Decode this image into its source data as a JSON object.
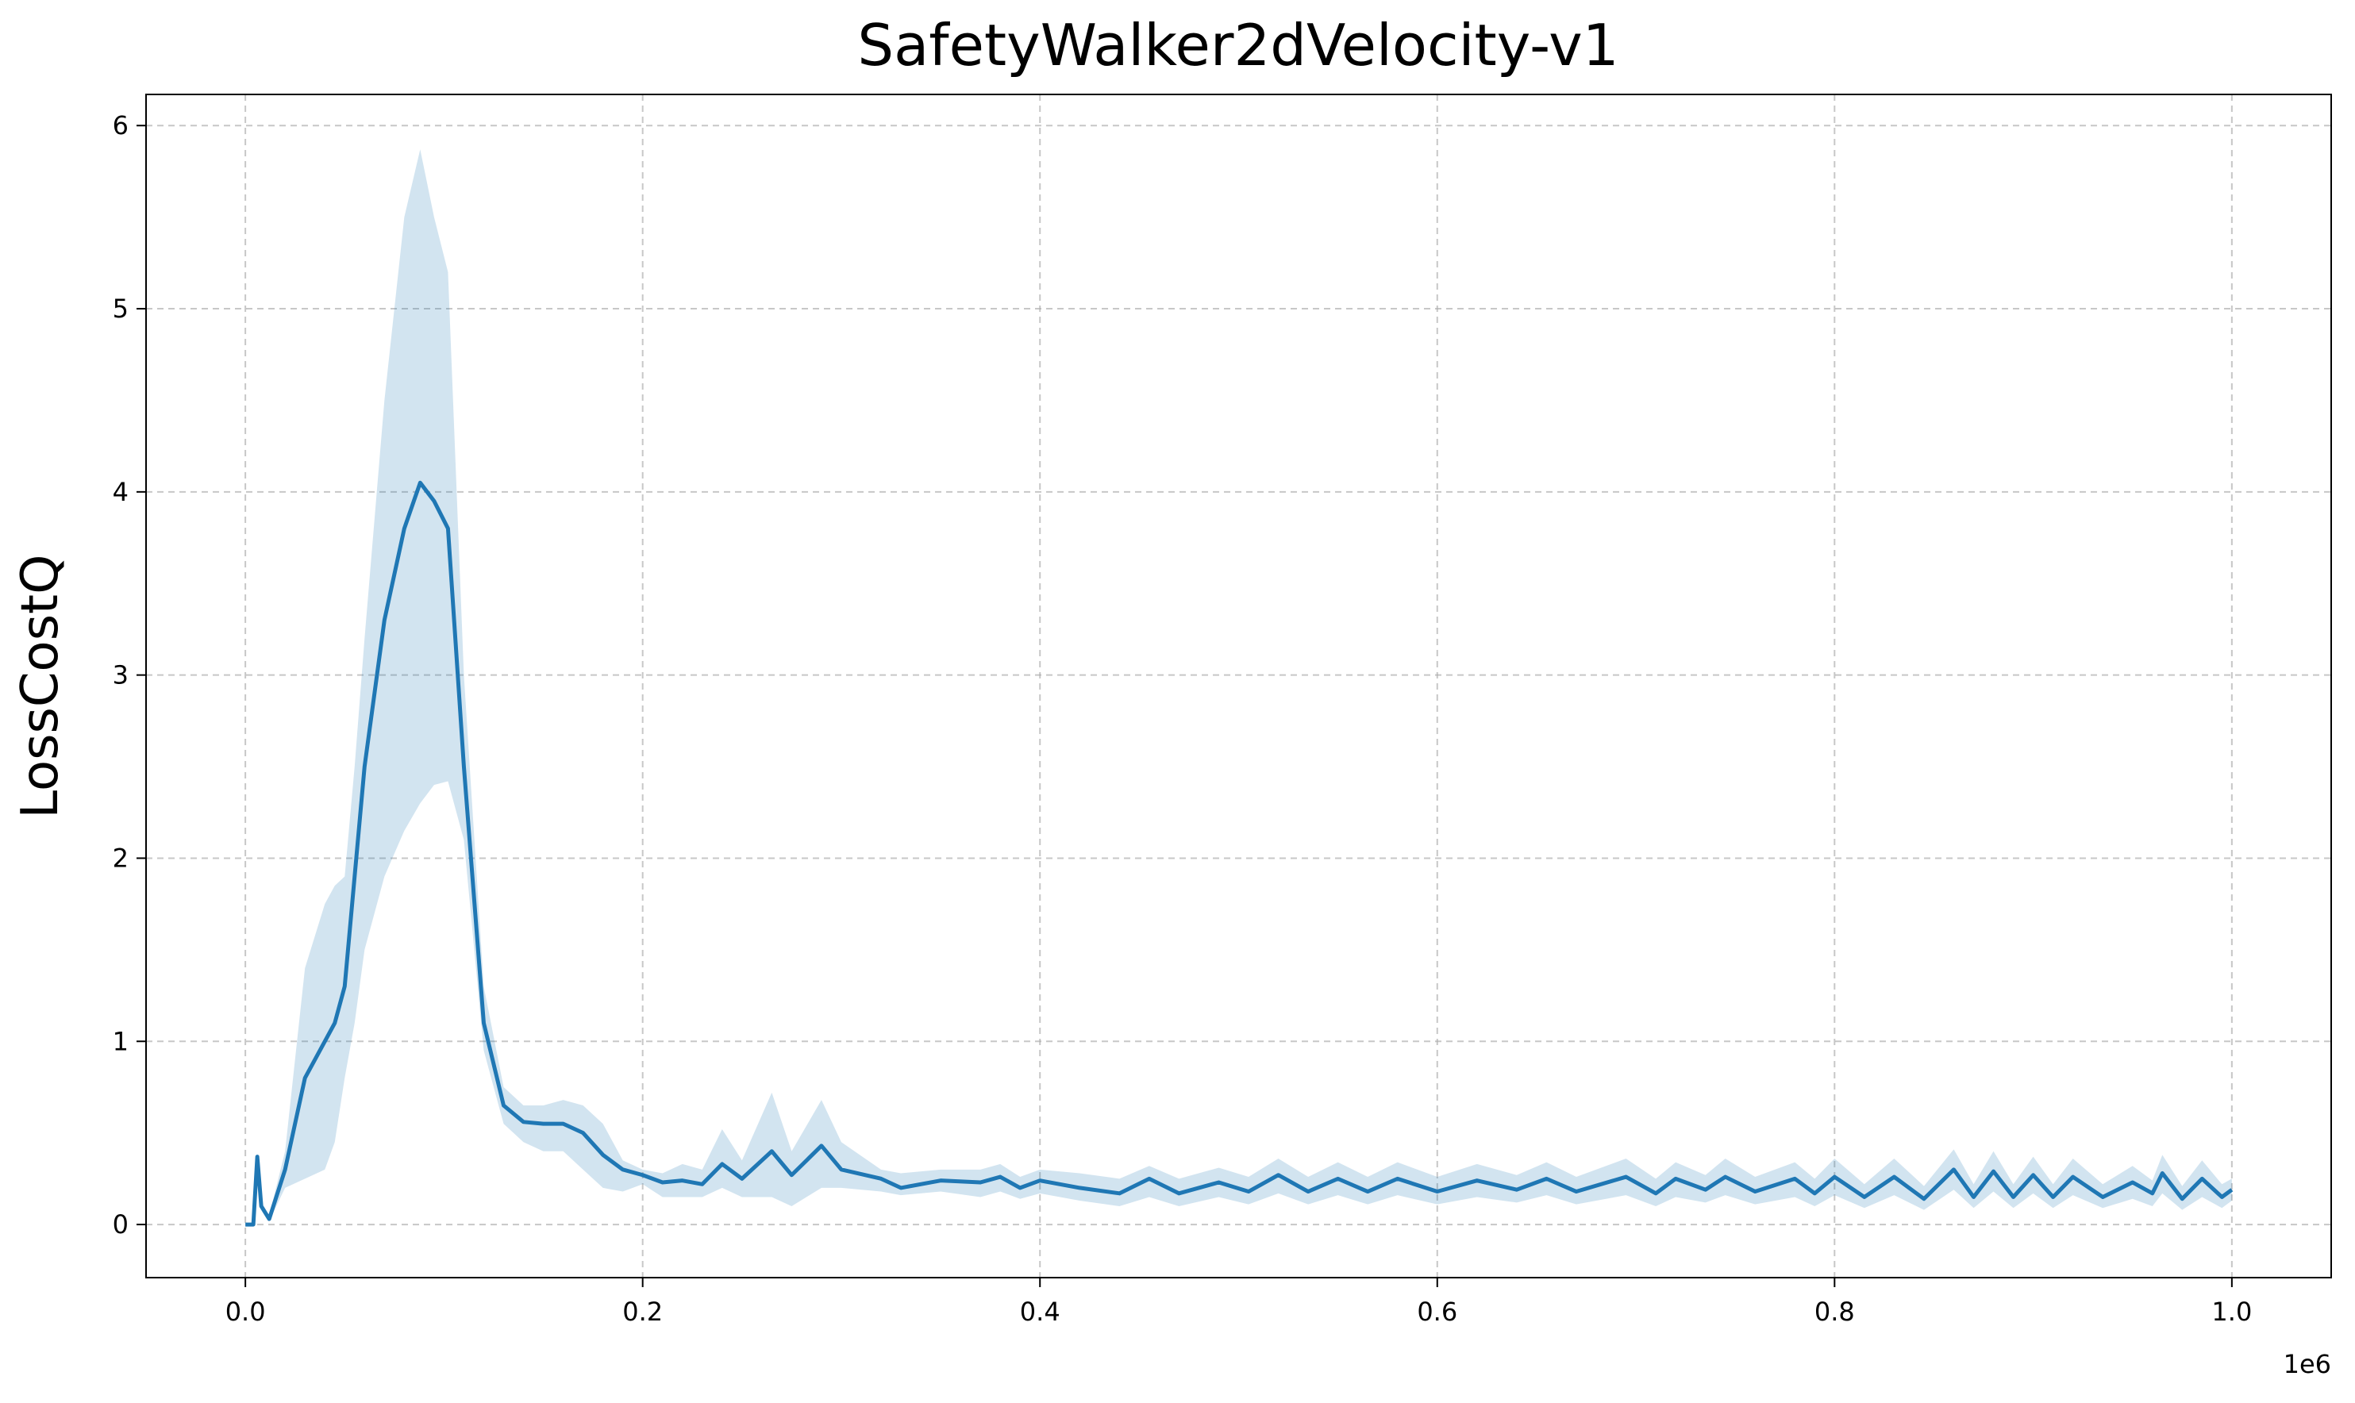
{
  "chart_data": {
    "type": "line",
    "title": "SafetyWalker2dVelocity-v1",
    "y_label": "LossCostQ",
    "x_offset_label": "1e6",
    "color": "#1f77b4",
    "band_color": "#1f77b4",
    "band_opacity": 0.2,
    "grid": true,
    "xlim": [
      -50000,
      1050000
    ],
    "ylim": [
      -0.29,
      6.17
    ],
    "xticks": [
      {
        "value": 0,
        "label": "0.0"
      },
      {
        "value": 200000,
        "label": "0.2"
      },
      {
        "value": 400000,
        "label": "0.4"
      },
      {
        "value": 600000,
        "label": "0.6"
      },
      {
        "value": 800000,
        "label": "0.8"
      },
      {
        "value": 1000000,
        "label": "1.0"
      }
    ],
    "yticks": [
      0,
      1,
      2,
      3,
      4,
      5,
      6
    ],
    "x": [
      0,
      4000,
      6000,
      8000,
      12000,
      20000,
      30000,
      40000,
      45000,
      50000,
      55000,
      60000,
      70000,
      80000,
      88000,
      95000,
      102000,
      110000,
      120000,
      130000,
      140000,
      150000,
      160000,
      170000,
      180000,
      190000,
      200000,
      210000,
      220000,
      230000,
      240000,
      250000,
      265000,
      275000,
      290000,
      300000,
      320000,
      330000,
      350000,
      370000,
      380000,
      390000,
      400000,
      420000,
      440000,
      455000,
      470000,
      490000,
      505000,
      520000,
      535000,
      550000,
      565000,
      580000,
      600000,
      620000,
      640000,
      655000,
      670000,
      695000,
      710000,
      720000,
      735000,
      745000,
      760000,
      780000,
      790000,
      800000,
      815000,
      830000,
      845000,
      860000,
      870000,
      880000,
      890000,
      900000,
      910000,
      920000,
      935000,
      950000,
      960000,
      965000,
      975000,
      985000,
      995000,
      1000000
    ],
    "values": [
      0,
      0,
      0.37,
      0.1,
      0.03,
      0.3,
      0.8,
      1.0,
      1.1,
      1.3,
      1.9,
      2.5,
      3.3,
      3.8,
      4.05,
      3.95,
      3.8,
      2.5,
      1.1,
      0.65,
      0.56,
      0.55,
      0.55,
      0.5,
      0.38,
      0.3,
      0.27,
      0.23,
      0.24,
      0.22,
      0.33,
      0.25,
      0.4,
      0.27,
      0.43,
      0.3,
      0.25,
      0.2,
      0.24,
      0.23,
      0.26,
      0.2,
      0.24,
      0.2,
      0.17,
      0.25,
      0.17,
      0.23,
      0.18,
      0.27,
      0.18,
      0.25,
      0.18,
      0.25,
      0.18,
      0.24,
      0.19,
      0.25,
      0.18,
      0.26,
      0.17,
      0.25,
      0.19,
      0.26,
      0.18,
      0.25,
      0.17,
      0.26,
      0.15,
      0.26,
      0.14,
      0.3,
      0.15,
      0.29,
      0.15,
      0.27,
      0.15,
      0.26,
      0.15,
      0.23,
      0.17,
      0.28,
      0.14,
      0.25,
      0.15,
      0.19
    ],
    "lower": [
      0,
      0,
      0.35,
      0.08,
      0.02,
      0.2,
      0.25,
      0.3,
      0.45,
      0.8,
      1.1,
      1.5,
      1.9,
      2.15,
      2.3,
      2.4,
      2.42,
      2.1,
      0.95,
      0.55,
      0.45,
      0.4,
      0.4,
      0.3,
      0.2,
      0.18,
      0.22,
      0.15,
      0.15,
      0.15,
      0.2,
      0.15,
      0.15,
      0.1,
      0.2,
      0.2,
      0.18,
      0.16,
      0.18,
      0.15,
      0.18,
      0.14,
      0.17,
      0.13,
      0.1,
      0.15,
      0.1,
      0.15,
      0.11,
      0.17,
      0.11,
      0.16,
      0.11,
      0.16,
      0.11,
      0.15,
      0.12,
      0.16,
      0.11,
      0.16,
      0.1,
      0.15,
      0.12,
      0.16,
      0.11,
      0.15,
      0.1,
      0.16,
      0.09,
      0.16,
      0.08,
      0.19,
      0.09,
      0.18,
      0.09,
      0.17,
      0.09,
      0.16,
      0.09,
      0.14,
      0.1,
      0.17,
      0.08,
      0.15,
      0.09,
      0.13
    ],
    "upper": [
      0,
      0,
      0.39,
      0.12,
      0.05,
      0.4,
      1.4,
      1.75,
      1.85,
      1.9,
      2.5,
      3.2,
      4.5,
      5.5,
      5.87,
      5.5,
      5.2,
      3.0,
      1.3,
      0.75,
      0.65,
      0.65,
      0.68,
      0.65,
      0.55,
      0.35,
      0.3,
      0.28,
      0.33,
      0.3,
      0.52,
      0.35,
      0.72,
      0.4,
      0.68,
      0.45,
      0.3,
      0.28,
      0.3,
      0.3,
      0.33,
      0.26,
      0.3,
      0.28,
      0.25,
      0.32,
      0.25,
      0.31,
      0.26,
      0.36,
      0.26,
      0.34,
      0.26,
      0.34,
      0.26,
      0.33,
      0.27,
      0.34,
      0.26,
      0.36,
      0.25,
      0.34,
      0.27,
      0.36,
      0.26,
      0.34,
      0.25,
      0.36,
      0.22,
      0.36,
      0.21,
      0.41,
      0.22,
      0.4,
      0.22,
      0.37,
      0.22,
      0.36,
      0.22,
      0.32,
      0.24,
      0.38,
      0.21,
      0.35,
      0.22,
      0.25
    ]
  }
}
